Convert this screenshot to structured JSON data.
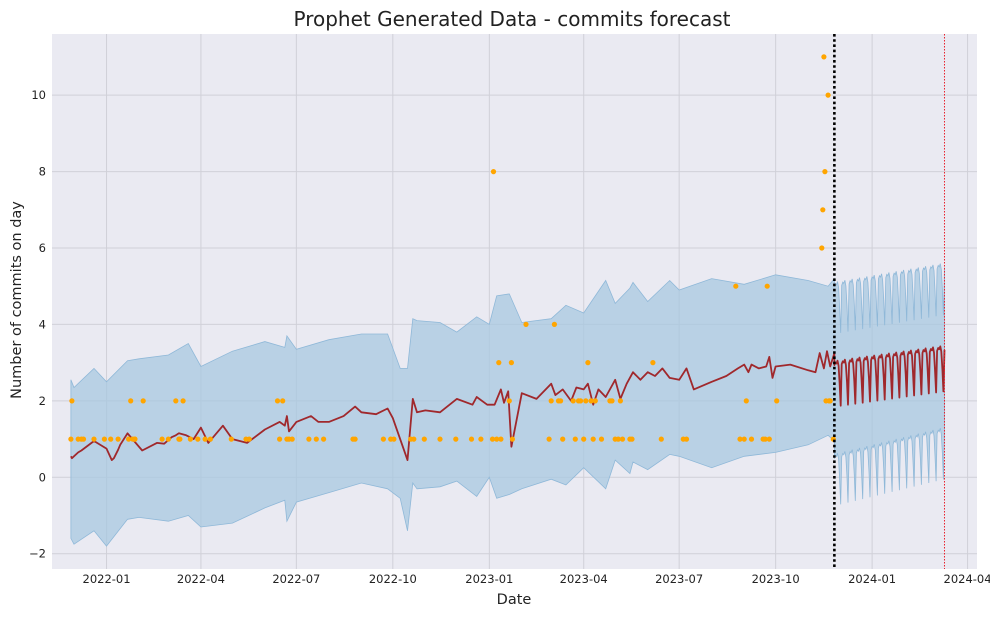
{
  "chart_data": {
    "type": "line",
    "title": "Prophet Generated Data - commits forecast",
    "xlabel": "Date",
    "ylabel": "Number of commits on day",
    "x_range": [
      "2021-11-10",
      "2024-04-10"
    ],
    "ylim": [
      -2.4,
      11.6
    ],
    "grid": true,
    "legend": "none",
    "x_ticks": [
      "2022-01-01",
      "2022-04-01",
      "2022-07-01",
      "2022-10-01",
      "2023-01-01",
      "2023-04-01",
      "2023-07-01",
      "2023-10-01",
      "2024-01-01",
      "2024-04-01"
    ],
    "x_tick_labels": [
      "2022-01",
      "2022-04",
      "2022-07",
      "2022-10",
      "2023-01",
      "2023-04",
      "2023-07",
      "2023-10",
      "2024-01",
      "2024-04"
    ],
    "y_ticks": [
      -2,
      0,
      2,
      4,
      6,
      8,
      10
    ],
    "y_tick_labels": [
      "−2",
      "0",
      "2",
      "4",
      "6",
      "8",
      "10"
    ],
    "colors": {
      "forecast_line": "#a0282c",
      "interval_fill": "#a8c8e0",
      "interval_edge": "#8fb8d8",
      "observed_points": "#ffa500",
      "cutoff_line": "#000000",
      "horizon_line": "#e8202a",
      "plot_background": "#eaeaf2",
      "grid": "#d0d0d8"
    },
    "forecast_start": "2023-11-26",
    "forecast_end": "2024-03-10",
    "vertical_lines": [
      {
        "date": "2023-11-26",
        "style": "dotted",
        "color": "#000000"
      },
      {
        "date": "2024-03-10",
        "style": "dotted",
        "color": "#e8202a"
      }
    ],
    "forecast_history": {
      "x": [
        "2021-11-28",
        "2021-11-29",
        "2021-12-05",
        "2021-12-08",
        "2021-12-20",
        "2022-01-01",
        "2022-01-06",
        "2022-01-08",
        "2022-01-12",
        "2022-01-14",
        "2022-01-21",
        "2022-02-04",
        "2022-02-18",
        "2022-02-25",
        "2022-03-04",
        "2022-03-08",
        "2022-03-11",
        "2022-03-18",
        "2022-03-25",
        "2022-04-01",
        "2022-04-08",
        "2022-04-22",
        "2022-05-01",
        "2022-05-15",
        "2022-06-01",
        "2022-06-15",
        "2022-06-20",
        "2022-06-22",
        "2022-06-24",
        "2022-07-01",
        "2022-07-15",
        "2022-07-22",
        "2022-08-01",
        "2022-08-15",
        "2022-08-26",
        "2022-09-01",
        "2022-09-15",
        "2022-09-26",
        "2022-10-01",
        "2022-10-15",
        "2022-10-20",
        "2022-10-24",
        "2022-11-01",
        "2022-11-15",
        "2022-12-01",
        "2022-12-16",
        "2022-12-20",
        "2022-12-30",
        "2023-01-06",
        "2023-01-12",
        "2023-01-15",
        "2023-01-19",
        "2023-01-22",
        "2023-02-01",
        "2023-02-15",
        "2023-03-01",
        "2023-03-05",
        "2023-03-12",
        "2023-03-20",
        "2023-03-25",
        "2023-04-01",
        "2023-04-05",
        "2023-04-10",
        "2023-04-15",
        "2023-04-22",
        "2023-05-01",
        "2023-05-06",
        "2023-05-12",
        "2023-05-18",
        "2023-05-25",
        "2023-06-01",
        "2023-06-08",
        "2023-06-15",
        "2023-06-22",
        "2023-07-01",
        "2023-07-08",
        "2023-07-15",
        "2023-08-01",
        "2023-08-15",
        "2023-08-26",
        "2023-09-01",
        "2023-09-05",
        "2023-09-08",
        "2023-09-15",
        "2023-09-22",
        "2023-09-25",
        "2023-09-28",
        "2023-10-01",
        "2023-10-15",
        "2023-11-01",
        "2023-11-08",
        "2023-11-12",
        "2023-11-16",
        "2023-11-19",
        "2023-11-22",
        "2023-11-26"
      ],
      "yhat": [
        0.55,
        0.5,
        0.65,
        0.7,
        0.95,
        0.75,
        0.45,
        0.5,
        0.72,
        0.85,
        1.15,
        0.7,
        0.9,
        0.88,
        1.05,
        1.1,
        1.15,
        1.1,
        1.0,
        1.3,
        0.9,
        1.35,
        1.0,
        0.9,
        1.25,
        1.45,
        1.35,
        1.6,
        1.2,
        1.45,
        1.6,
        1.45,
        1.45,
        1.6,
        1.85,
        1.7,
        1.65,
        1.8,
        1.55,
        0.45,
        2.05,
        1.7,
        1.75,
        1.7,
        2.05,
        1.9,
        2.1,
        1.9,
        1.9,
        2.3,
        1.95,
        2.25,
        0.8,
        2.2,
        2.05,
        2.45,
        2.15,
        2.3,
        2.0,
        2.35,
        2.3,
        2.45,
        1.9,
        2.3,
        2.1,
        2.55,
        2.05,
        2.45,
        2.75,
        2.55,
        2.75,
        2.65,
        2.85,
        2.6,
        2.55,
        2.85,
        2.3,
        2.5,
        2.65,
        2.85,
        2.95,
        2.75,
        2.95,
        2.85,
        2.9,
        3.15,
        2.6,
        2.9,
        2.95,
        2.8,
        2.75,
        3.25,
        2.85,
        3.3,
        2.9,
        3.25
      ]
    },
    "forecast_future": {
      "start": "2023-11-26",
      "end": "2024-03-10",
      "period_days": 7,
      "yhat_trend_start": 2.55,
      "yhat_trend_end": 2.95,
      "weekly_amplitude": 0.7
    },
    "interval_upper": {
      "x": [
        "2021-11-28",
        "2021-12-01",
        "2021-12-20",
        "2022-01-01",
        "2022-01-21",
        "2022-02-01",
        "2022-03-01",
        "2022-03-20",
        "2022-04-01",
        "2022-05-01",
        "2022-06-01",
        "2022-06-20",
        "2022-06-22",
        "2022-07-01",
        "2022-08-01",
        "2022-09-01",
        "2022-09-26",
        "2022-10-08",
        "2022-10-15",
        "2022-10-20",
        "2022-10-24",
        "2022-11-15",
        "2022-12-01",
        "2022-12-20",
        "2023-01-01",
        "2023-01-08",
        "2023-01-20",
        "2023-02-01",
        "2023-03-01",
        "2023-03-15",
        "2023-04-01",
        "2023-04-22",
        "2023-05-01",
        "2023-05-15",
        "2023-05-18",
        "2023-06-01",
        "2023-06-22",
        "2023-07-01",
        "2023-08-01",
        "2023-09-01",
        "2023-10-01",
        "2023-11-01",
        "2023-11-20",
        "2023-11-26"
      ],
      "y": [
        2.55,
        2.35,
        2.85,
        2.5,
        3.05,
        3.1,
        3.2,
        3.5,
        2.9,
        3.3,
        3.55,
        3.4,
        3.7,
        3.35,
        3.6,
        3.75,
        3.75,
        2.85,
        2.85,
        4.15,
        4.1,
        4.05,
        3.8,
        4.2,
        4.0,
        4.75,
        4.8,
        4.05,
        4.15,
        4.5,
        4.3,
        5.15,
        4.55,
        4.95,
        5.1,
        4.6,
        5.15,
        4.9,
        5.2,
        5.05,
        5.3,
        5.15,
        5.0,
        5.2
      ]
    },
    "interval_lower": {
      "x": [
        "2021-11-28",
        "2021-12-01",
        "2021-12-20",
        "2022-01-01",
        "2022-01-21",
        "2022-02-01",
        "2022-03-01",
        "2022-03-20",
        "2022-04-01",
        "2022-05-01",
        "2022-06-01",
        "2022-06-20",
        "2022-06-22",
        "2022-07-01",
        "2022-08-01",
        "2022-09-01",
        "2022-09-26",
        "2022-10-08",
        "2022-10-15",
        "2022-10-20",
        "2022-10-24",
        "2022-11-15",
        "2022-12-01",
        "2022-12-20",
        "2023-01-01",
        "2023-01-08",
        "2023-01-20",
        "2023-02-01",
        "2023-03-01",
        "2023-03-15",
        "2023-04-01",
        "2023-04-22",
        "2023-05-01",
        "2023-05-15",
        "2023-05-18",
        "2023-06-01",
        "2023-06-22",
        "2023-07-01",
        "2023-08-01",
        "2023-09-01",
        "2023-10-01",
        "2023-11-01",
        "2023-11-20",
        "2023-11-26"
      ],
      "y": [
        -1.6,
        -1.75,
        -1.4,
        -1.8,
        -1.1,
        -1.05,
        -1.15,
        -1.0,
        -1.3,
        -1.2,
        -0.8,
        -0.6,
        -1.15,
        -0.65,
        -0.4,
        -0.15,
        -0.3,
        -0.55,
        -1.4,
        -0.15,
        -0.3,
        -0.25,
        -0.1,
        -0.5,
        0.0,
        -0.55,
        -0.45,
        -0.3,
        -0.05,
        -0.2,
        0.25,
        -0.3,
        0.45,
        0.1,
        0.4,
        0.2,
        0.6,
        0.55,
        0.25,
        0.55,
        0.65,
        0.85,
        1.1,
        0.95
      ]
    },
    "interval_future": {
      "upper_base_start": 4.55,
      "upper_base_end": 5.05,
      "lower_base_start": 0.05,
      "lower_base_end": 0.75,
      "weekly_amplitude": 0.8
    },
    "observed": {
      "x": [
        "2021-11-28",
        "2021-11-29",
        "2021-12-05",
        "2021-12-08",
        "2021-12-10",
        "2021-12-20",
        "2021-12-30",
        "2022-01-05",
        "2022-01-12",
        "2022-01-22",
        "2022-01-24",
        "2022-01-26",
        "2022-01-28",
        "2022-01-28",
        "2022-02-05",
        "2022-02-23",
        "2022-03-01",
        "2022-03-08",
        "2022-03-11",
        "2022-03-12",
        "2022-03-15",
        "2022-03-22",
        "2022-03-29",
        "2022-04-05",
        "2022-04-10",
        "2022-04-30",
        "2022-05-14",
        "2022-05-17",
        "2022-06-13",
        "2022-06-15",
        "2022-06-18",
        "2022-06-22",
        "2022-06-24",
        "2022-06-27",
        "2022-07-13",
        "2022-07-20",
        "2022-07-27",
        "2022-08-24",
        "2022-08-26",
        "2022-09-22",
        "2022-09-29",
        "2022-10-02",
        "2022-10-18",
        "2022-10-21",
        "2022-10-31",
        "2022-11-15",
        "2022-11-30",
        "2022-12-15",
        "2022-12-24",
        "2023-01-04",
        "2023-01-05",
        "2023-01-08",
        "2023-01-10",
        "2023-01-12",
        "2023-01-20",
        "2023-01-22",
        "2023-01-23",
        "2023-02-05",
        "2023-02-27",
        "2023-03-01",
        "2023-03-04",
        "2023-03-08",
        "2023-03-10",
        "2023-03-12",
        "2023-03-22",
        "2023-03-24",
        "2023-03-27",
        "2023-03-29",
        "2023-04-01",
        "2023-04-03",
        "2023-04-05",
        "2023-04-08",
        "2023-04-10",
        "2023-04-12",
        "2023-04-18",
        "2023-04-26",
        "2023-04-28",
        "2023-05-01",
        "2023-05-04",
        "2023-05-06",
        "2023-05-08",
        "2023-05-15",
        "2023-05-17",
        "2023-06-06",
        "2023-06-14",
        "2023-07-05",
        "2023-07-08",
        "2023-08-24",
        "2023-08-28",
        "2023-09-01",
        "2023-09-03",
        "2023-09-08",
        "2023-09-19",
        "2023-09-21",
        "2023-09-23",
        "2023-09-25",
        "2023-10-02",
        "2023-11-14",
        "2023-11-15",
        "2023-11-16",
        "2023-11-17",
        "2023-11-18",
        "2023-11-20",
        "2023-11-21",
        "2023-11-22",
        "2023-11-25"
      ],
      "y": [
        1,
        2,
        1,
        1,
        1,
        1,
        1,
        1,
        1,
        1,
        2,
        1,
        1,
        1,
        2,
        1,
        1,
        2,
        1,
        1,
        2,
        1,
        1,
        1,
        1,
        1,
        1,
        1,
        2,
        1,
        2,
        1,
        1,
        1,
        1,
        1,
        1,
        1,
        1,
        1,
        1,
        1,
        1,
        1,
        1,
        1,
        1,
        1,
        1,
        1,
        8,
        1,
        3,
        1,
        2,
        3,
        1,
        4,
        1,
        2,
        4,
        2,
        2,
        1,
        2,
        1,
        2,
        2,
        1,
        2,
        3,
        2,
        1,
        2,
        1,
        2,
        2,
        1,
        1,
        2,
        1,
        1,
        1,
        3,
        1,
        1,
        1,
        5,
        1,
        1,
        2,
        1,
        1,
        1,
        5,
        1,
        2,
        6,
        7,
        11,
        8,
        2,
        10,
        2,
        2,
        1
      ]
    }
  }
}
